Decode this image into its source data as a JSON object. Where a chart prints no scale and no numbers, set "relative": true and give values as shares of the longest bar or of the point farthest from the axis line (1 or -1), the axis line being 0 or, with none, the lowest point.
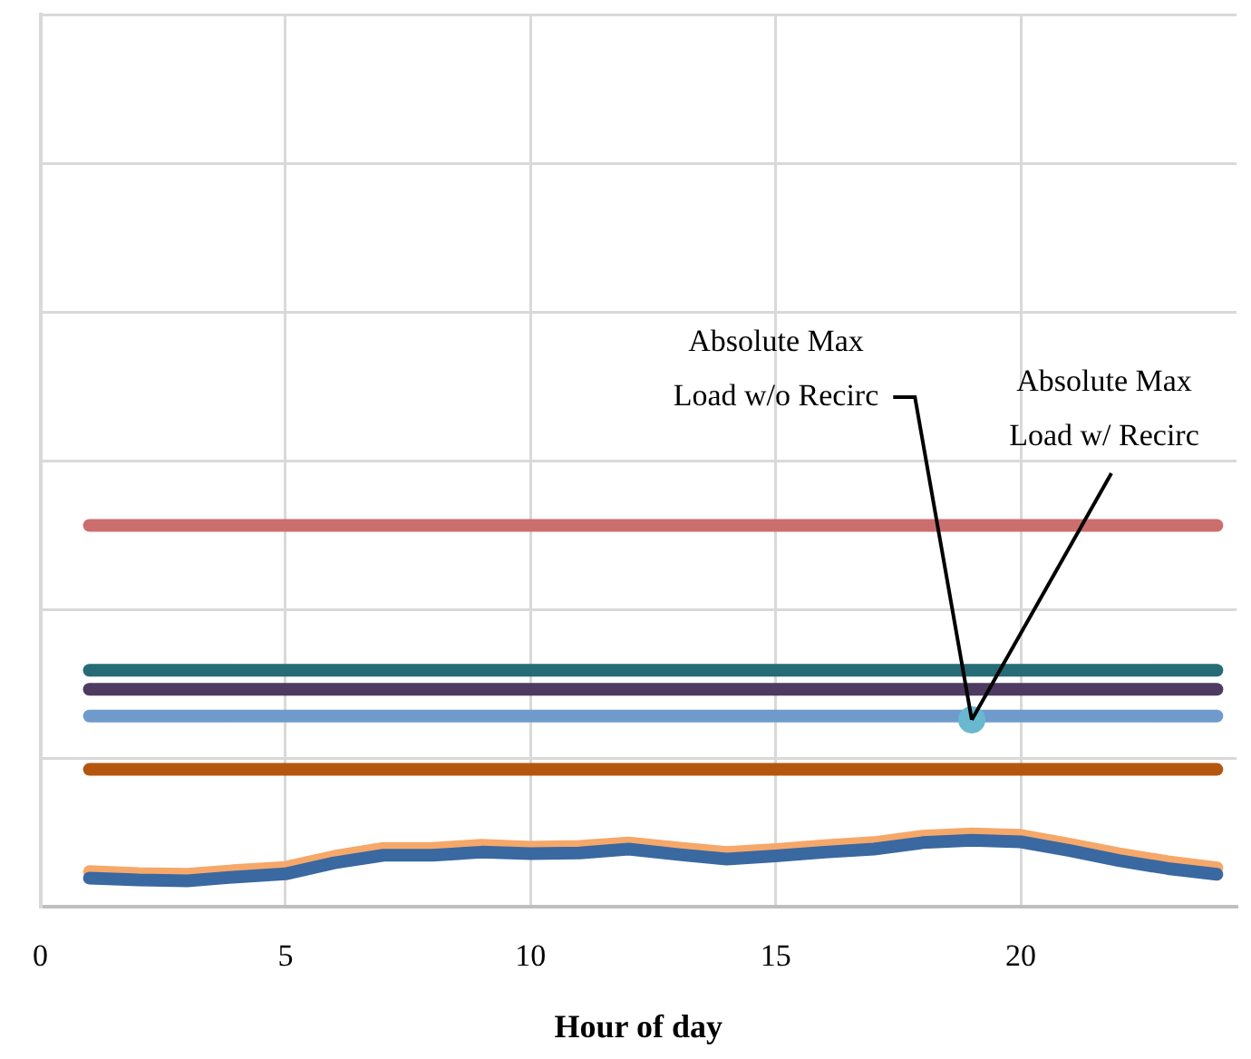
{
  "chart_data": {
    "type": "line",
    "xlabel": "Hour of day",
    "relative": true,
    "grid": true,
    "legend": false,
    "marker": "none",
    "line_style": "solid",
    "tick_labels": "x",
    "xlim": [
      0,
      24.4
    ],
    "xticks": [
      0,
      5,
      10,
      15,
      20
    ],
    "x": [
      1,
      2,
      3,
      4,
      5,
      6,
      7,
      8,
      9,
      10,
      11,
      12,
      13,
      14,
      15,
      16,
      17,
      18,
      19,
      20,
      21,
      22,
      23,
      24
    ],
    "series": [
      {
        "color": "#cd6e6e",
        "x": [
          1,
          24
        ],
        "values": [
          1,
          1
        ]
      },
      {
        "color": "#266b76",
        "x": [
          1,
          24
        ],
        "values": [
          0.62,
          0.62
        ]
      },
      {
        "color": "#4d3b62",
        "x": [
          1,
          24
        ],
        "values": [
          0.57,
          0.57
        ]
      },
      {
        "color": "#6f9bcc",
        "x": [
          1,
          24
        ],
        "values": [
          0.5,
          0.5
        ]
      },
      {
        "color": "#b5560f",
        "x": [
          1,
          24
        ],
        "values": [
          0.36,
          0.36
        ]
      },
      {
        "color": "#f5a86a",
        "values": [
          0.092,
          0.087,
          0.085,
          0.095,
          0.103,
          0.132,
          0.153,
          0.153,
          0.161,
          0.156,
          0.158,
          0.167,
          0.154,
          0.142,
          0.15,
          0.16,
          0.168,
          0.185,
          0.191,
          0.187,
          0.164,
          0.139,
          0.118,
          0.102
        ]
      },
      {
        "color": "#3a68a0",
        "values": [
          0.075,
          0.07,
          0.068,
          0.078,
          0.086,
          0.115,
          0.135,
          0.135,
          0.143,
          0.139,
          0.141,
          0.151,
          0.137,
          0.125,
          0.133,
          0.143,
          0.151,
          0.168,
          0.174,
          0.17,
          0.147,
          0.121,
          0.1,
          0.085
        ]
      },
      {
        "type": "scatter",
        "marker": "circle",
        "color": "#6ab8d0",
        "x": [
          19
        ],
        "values": [
          0.49
        ]
      }
    ],
    "annotations": [
      {
        "text": "Absolute Max Load w/o Recirc",
        "x": 19,
        "y": 0.49
      },
      {
        "text": "Absolute Max Load w/ Recirc",
        "x": 19,
        "y": 0.49
      }
    ]
  }
}
